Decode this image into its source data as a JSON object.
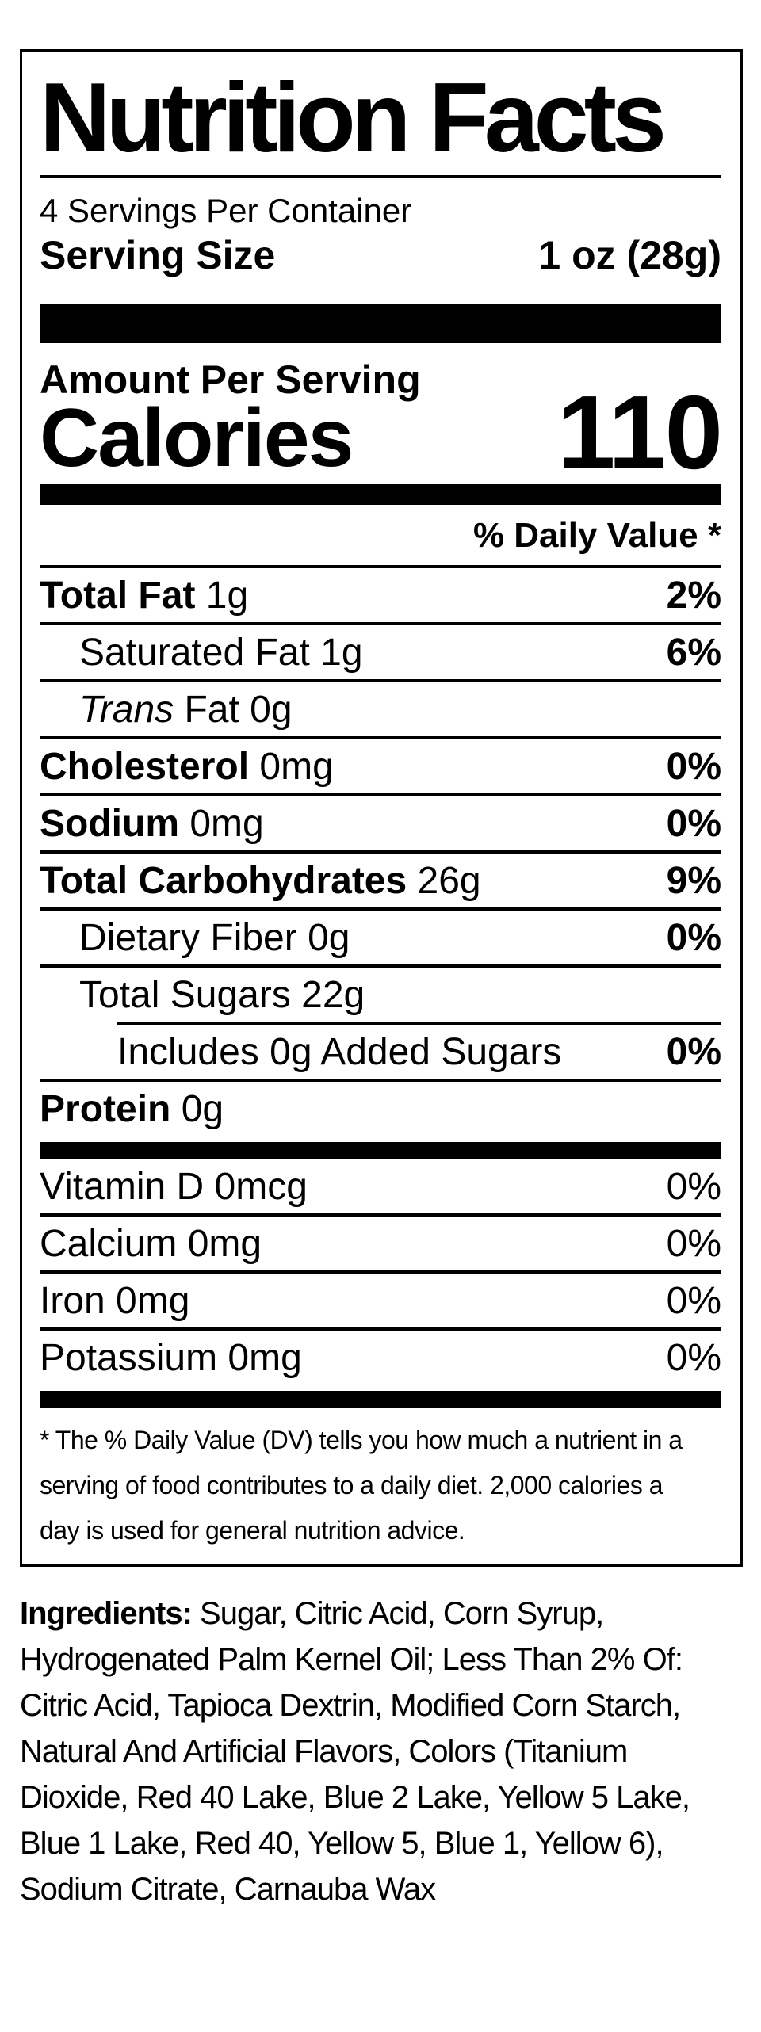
{
  "colors": {
    "text": "#000000",
    "background": "#ffffff",
    "divider": "#000000"
  },
  "label": {
    "title": "Nutrition Facts",
    "servings_per_container": "4 Servings Per Container",
    "serving_size": {
      "label": "Serving Size",
      "value": "1 oz (28g)"
    },
    "amount_per_serving": "Amount Per Serving",
    "calories": {
      "label": "Calories",
      "value": "110"
    },
    "daily_value_header": "% Daily Value *",
    "rows": [
      {
        "name": "Total Fat",
        "rest": " 1g",
        "dv": "2%"
      },
      {
        "plain": "Saturated Fat 1g",
        "dv": "6%"
      },
      {
        "italic": "Trans",
        "rest": " Fat 0g",
        "dv": ""
      },
      {
        "name": "Cholesterol",
        "rest": " 0mg",
        "dv": "0%"
      },
      {
        "name": "Sodium",
        "rest": " 0mg",
        "dv": "0%"
      },
      {
        "name": "Total Carbohydrates",
        "rest": " 26g",
        "dv": "9%"
      },
      {
        "plain": "Dietary Fiber 0g",
        "dv": "0%"
      },
      {
        "plain": "Total Sugars 22g",
        "dv": ""
      },
      {
        "plain": "Includes 0g Added Sugars",
        "dv": "0%"
      },
      {
        "name": "Protein",
        "rest": " 0g",
        "dv": ""
      }
    ],
    "vitamins": [
      {
        "plain": "Vitamin D 0mcg",
        "dv": "0%"
      },
      {
        "plain": "Calcium 0mg",
        "dv": "0%"
      },
      {
        "plain": "Iron 0mg",
        "dv": "0%"
      },
      {
        "plain": "Potassium 0mg",
        "dv": "0%"
      }
    ],
    "footnote": "* The % Daily Value (DV) tells you how much a nutrient in a\nserving of food contributes to a daily diet. 2,000 calories a\nday is used for general nutrition advice."
  },
  "ingredients": {
    "label": "Ingredients:",
    "text": " Sugar, Citric Acid, Corn Syrup,\nHydrogenated Palm Kernel Oil; Less Than 2% Of:\nCitric Acid, Tapioca Dextrin, Modified Corn Starch,\nNatural And Artificial Flavors, Colors (Titanium\nDioxide, Red 40 Lake, Blue 2 Lake, Yellow 5 Lake,\nBlue 1 Lake, Red 40, Yellow 5, Blue 1, Yellow 6),\nSodium Citrate, Carnauba Wax"
  }
}
